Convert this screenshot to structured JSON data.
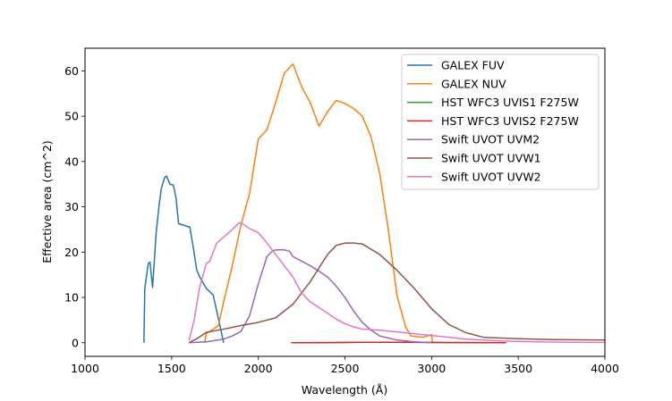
{
  "chart_data": {
    "type": "line",
    "xlabel": "Wavelength (Å)",
    "ylabel": "Effective area (cm^2)",
    "xlim": [
      1000,
      4000
    ],
    "ylim": [
      -3,
      65
    ],
    "xticks": [
      1000,
      1500,
      2000,
      2500,
      3000,
      3500,
      4000
    ],
    "yticks": [
      0,
      10,
      20,
      30,
      40,
      50,
      60
    ],
    "grid": false,
    "legend_position": "top-right",
    "series": [
      {
        "name": "GALEX FUV",
        "color": "#1f77b4",
        "points": [
          [
            1340,
            0
          ],
          [
            1345,
            12
          ],
          [
            1365,
            17.5
          ],
          [
            1375,
            17.8
          ],
          [
            1390,
            12.2
          ],
          [
            1400,
            18
          ],
          [
            1410,
            24
          ],
          [
            1425,
            29.5
          ],
          [
            1440,
            34
          ],
          [
            1460,
            36.5
          ],
          [
            1470,
            36.8
          ],
          [
            1490,
            35
          ],
          [
            1510,
            34.8
          ],
          [
            1525,
            32
          ],
          [
            1540,
            26.3
          ],
          [
            1605,
            25.5
          ],
          [
            1625,
            21
          ],
          [
            1645,
            16
          ],
          [
            1665,
            14.3
          ],
          [
            1700,
            12
          ],
          [
            1740,
            10.5
          ],
          [
            1760,
            7
          ],
          [
            1780,
            3.5
          ],
          [
            1800,
            0
          ]
        ]
      },
      {
        "name": "GALEX NUV",
        "color": "#ff7f0e",
        "points": [
          [
            1690,
            0
          ],
          [
            1700,
            2
          ],
          [
            1740,
            3
          ],
          [
            1770,
            3.8
          ],
          [
            1800,
            9
          ],
          [
            1850,
            17
          ],
          [
            1900,
            26
          ],
          [
            1950,
            33
          ],
          [
            2000,
            45
          ],
          [
            2050,
            47
          ],
          [
            2100,
            53
          ],
          [
            2150,
            59.5
          ],
          [
            2200,
            61.5
          ],
          [
            2250,
            56.5
          ],
          [
            2300,
            53
          ],
          [
            2350,
            47.8
          ],
          [
            2400,
            51
          ],
          [
            2450,
            53.5
          ],
          [
            2500,
            52.8
          ],
          [
            2550,
            51.7
          ],
          [
            2600,
            50
          ],
          [
            2650,
            45.5
          ],
          [
            2700,
            37.5
          ],
          [
            2750,
            25
          ],
          [
            2800,
            10.5
          ],
          [
            2850,
            3.5
          ],
          [
            2880,
            1.5
          ],
          [
            2950,
            1.2
          ],
          [
            3000,
            1.8
          ],
          [
            3005,
            0
          ]
        ]
      },
      {
        "name": "HST WFC3 UVIS1 F275W",
        "color": "#2ca02c",
        "points": [
          [
            2190,
            0
          ],
          [
            2400,
            0.02
          ],
          [
            2600,
            0.1
          ],
          [
            2800,
            0.1
          ],
          [
            3000,
            0.06
          ],
          [
            3200,
            0.03
          ],
          [
            3430,
            0
          ]
        ]
      },
      {
        "name": "HST WFC3 UVIS2 F275W",
        "color": "#d62728",
        "points": [
          [
            2190,
            0
          ],
          [
            2400,
            0.02
          ],
          [
            2600,
            0.11
          ],
          [
            2800,
            0.11
          ],
          [
            3000,
            0.07
          ],
          [
            3200,
            0.03
          ],
          [
            3430,
            0
          ]
        ]
      },
      {
        "name": "Swift UVOT UVM2",
        "color": "#9467bd",
        "points": [
          [
            1600,
            0
          ],
          [
            1700,
            0.2
          ],
          [
            1800,
            0.8
          ],
          [
            1850,
            1.5
          ],
          [
            1900,
            2.5
          ],
          [
            1950,
            6
          ],
          [
            2000,
            13
          ],
          [
            2050,
            19
          ],
          [
            2080,
            20.2
          ],
          [
            2100,
            20.5
          ],
          [
            2150,
            20.5
          ],
          [
            2180,
            20.2
          ],
          [
            2200,
            19
          ],
          [
            2250,
            18
          ],
          [
            2300,
            17
          ],
          [
            2350,
            15.8
          ],
          [
            2400,
            14.5
          ],
          [
            2450,
            12.5
          ],
          [
            2500,
            10
          ],
          [
            2550,
            7
          ],
          [
            2600,
            4.5
          ],
          [
            2650,
            2.8
          ],
          [
            2700,
            1.5
          ],
          [
            2800,
            0.6
          ],
          [
            2900,
            0.2
          ],
          [
            3000,
            0
          ]
        ]
      },
      {
        "name": "Swift UVOT UVW1",
        "color": "#8c564b",
        "points": [
          [
            1600,
            0
          ],
          [
            1650,
            1
          ],
          [
            1700,
            2.3
          ],
          [
            1800,
            3
          ],
          [
            1900,
            3.8
          ],
          [
            2000,
            4.5
          ],
          [
            2100,
            5.5
          ],
          [
            2200,
            8.5
          ],
          [
            2300,
            13.5
          ],
          [
            2400,
            19.5
          ],
          [
            2450,
            21.5
          ],
          [
            2500,
            22
          ],
          [
            2550,
            22
          ],
          [
            2600,
            21.8
          ],
          [
            2700,
            19.5
          ],
          [
            2800,
            16
          ],
          [
            2900,
            12
          ],
          [
            3000,
            7.5
          ],
          [
            3100,
            4
          ],
          [
            3200,
            2.2
          ],
          [
            3300,
            1.2
          ],
          [
            3500,
            0.9
          ],
          [
            3700,
            0.7
          ],
          [
            4000,
            0.6
          ]
        ]
      },
      {
        "name": "Swift UVOT UVW2",
        "color": "#e377c2",
        "points": [
          [
            1600,
            0.5
          ],
          [
            1630,
            5
          ],
          [
            1660,
            12
          ],
          [
            1700,
            17.5
          ],
          [
            1720,
            18
          ],
          [
            1760,
            22
          ],
          [
            1800,
            23.3
          ],
          [
            1850,
            25
          ],
          [
            1890,
            26.5
          ],
          [
            1920,
            26
          ],
          [
            1950,
            25.2
          ],
          [
            2000,
            24.3
          ],
          [
            2050,
            22
          ],
          [
            2100,
            19.5
          ],
          [
            2150,
            17
          ],
          [
            2200,
            14.5
          ],
          [
            2250,
            11
          ],
          [
            2300,
            9
          ],
          [
            2350,
            7.8
          ],
          [
            2400,
            6.5
          ],
          [
            2450,
            5.2
          ],
          [
            2500,
            4.2
          ],
          [
            2550,
            3.5
          ],
          [
            2600,
            3
          ],
          [
            2700,
            2.8
          ],
          [
            2800,
            2.4
          ],
          [
            2900,
            2
          ],
          [
            3000,
            1.6
          ],
          [
            3200,
            0.8
          ],
          [
            3400,
            0.4
          ],
          [
            3600,
            0.2
          ],
          [
            3800,
            0.1
          ],
          [
            4000,
            0.05
          ]
        ]
      }
    ]
  }
}
